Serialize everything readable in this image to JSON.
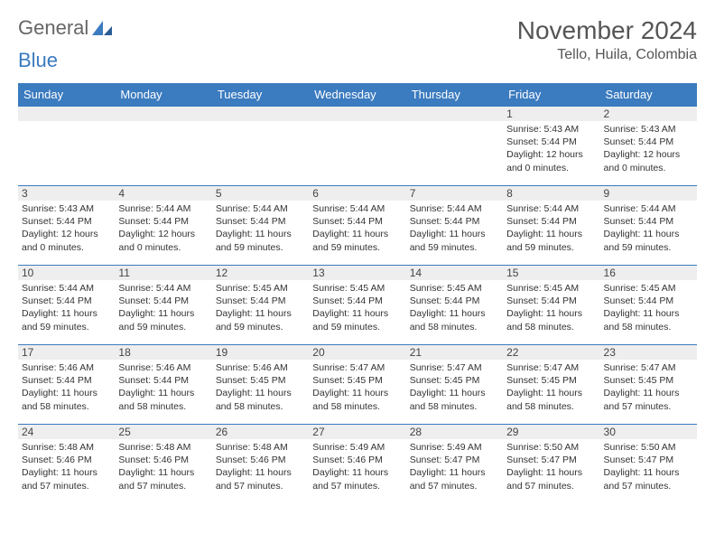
{
  "logo": {
    "text1": "General",
    "text2": "Blue"
  },
  "title": "November 2024",
  "location": "Tello, Huila, Colombia",
  "colors": {
    "header_bg": "#3b7bbf",
    "header_text": "#ffffff",
    "daynum_bg": "#eeeeee",
    "border": "#3b7bbf",
    "body_text": "#333333",
    "title_text": "#555555"
  },
  "days_of_week": [
    "Sunday",
    "Monday",
    "Tuesday",
    "Wednesday",
    "Thursday",
    "Friday",
    "Saturday"
  ],
  "weeks": [
    [
      null,
      null,
      null,
      null,
      null,
      {
        "n": "1",
        "sr": "5:43 AM",
        "ss": "5:44 PM",
        "dl": "12 hours and 0 minutes."
      },
      {
        "n": "2",
        "sr": "5:43 AM",
        "ss": "5:44 PM",
        "dl": "12 hours and 0 minutes."
      }
    ],
    [
      {
        "n": "3",
        "sr": "5:43 AM",
        "ss": "5:44 PM",
        "dl": "12 hours and 0 minutes."
      },
      {
        "n": "4",
        "sr": "5:44 AM",
        "ss": "5:44 PM",
        "dl": "12 hours and 0 minutes."
      },
      {
        "n": "5",
        "sr": "5:44 AM",
        "ss": "5:44 PM",
        "dl": "11 hours and 59 minutes."
      },
      {
        "n": "6",
        "sr": "5:44 AM",
        "ss": "5:44 PM",
        "dl": "11 hours and 59 minutes."
      },
      {
        "n": "7",
        "sr": "5:44 AM",
        "ss": "5:44 PM",
        "dl": "11 hours and 59 minutes."
      },
      {
        "n": "8",
        "sr": "5:44 AM",
        "ss": "5:44 PM",
        "dl": "11 hours and 59 minutes."
      },
      {
        "n": "9",
        "sr": "5:44 AM",
        "ss": "5:44 PM",
        "dl": "11 hours and 59 minutes."
      }
    ],
    [
      {
        "n": "10",
        "sr": "5:44 AM",
        "ss": "5:44 PM",
        "dl": "11 hours and 59 minutes."
      },
      {
        "n": "11",
        "sr": "5:44 AM",
        "ss": "5:44 PM",
        "dl": "11 hours and 59 minutes."
      },
      {
        "n": "12",
        "sr": "5:45 AM",
        "ss": "5:44 PM",
        "dl": "11 hours and 59 minutes."
      },
      {
        "n": "13",
        "sr": "5:45 AM",
        "ss": "5:44 PM",
        "dl": "11 hours and 59 minutes."
      },
      {
        "n": "14",
        "sr": "5:45 AM",
        "ss": "5:44 PM",
        "dl": "11 hours and 58 minutes."
      },
      {
        "n": "15",
        "sr": "5:45 AM",
        "ss": "5:44 PM",
        "dl": "11 hours and 58 minutes."
      },
      {
        "n": "16",
        "sr": "5:45 AM",
        "ss": "5:44 PM",
        "dl": "11 hours and 58 minutes."
      }
    ],
    [
      {
        "n": "17",
        "sr": "5:46 AM",
        "ss": "5:44 PM",
        "dl": "11 hours and 58 minutes."
      },
      {
        "n": "18",
        "sr": "5:46 AM",
        "ss": "5:44 PM",
        "dl": "11 hours and 58 minutes."
      },
      {
        "n": "19",
        "sr": "5:46 AM",
        "ss": "5:45 PM",
        "dl": "11 hours and 58 minutes."
      },
      {
        "n": "20",
        "sr": "5:47 AM",
        "ss": "5:45 PM",
        "dl": "11 hours and 58 minutes."
      },
      {
        "n": "21",
        "sr": "5:47 AM",
        "ss": "5:45 PM",
        "dl": "11 hours and 58 minutes."
      },
      {
        "n": "22",
        "sr": "5:47 AM",
        "ss": "5:45 PM",
        "dl": "11 hours and 58 minutes."
      },
      {
        "n": "23",
        "sr": "5:47 AM",
        "ss": "5:45 PM",
        "dl": "11 hours and 57 minutes."
      }
    ],
    [
      {
        "n": "24",
        "sr": "5:48 AM",
        "ss": "5:46 PM",
        "dl": "11 hours and 57 minutes."
      },
      {
        "n": "25",
        "sr": "5:48 AM",
        "ss": "5:46 PM",
        "dl": "11 hours and 57 minutes."
      },
      {
        "n": "26",
        "sr": "5:48 AM",
        "ss": "5:46 PM",
        "dl": "11 hours and 57 minutes."
      },
      {
        "n": "27",
        "sr": "5:49 AM",
        "ss": "5:46 PM",
        "dl": "11 hours and 57 minutes."
      },
      {
        "n": "28",
        "sr": "5:49 AM",
        "ss": "5:47 PM",
        "dl": "11 hours and 57 minutes."
      },
      {
        "n": "29",
        "sr": "5:50 AM",
        "ss": "5:47 PM",
        "dl": "11 hours and 57 minutes."
      },
      {
        "n": "30",
        "sr": "5:50 AM",
        "ss": "5:47 PM",
        "dl": "11 hours and 57 minutes."
      }
    ]
  ],
  "labels": {
    "sunrise": "Sunrise:",
    "sunset": "Sunset:",
    "daylight": "Daylight:"
  }
}
